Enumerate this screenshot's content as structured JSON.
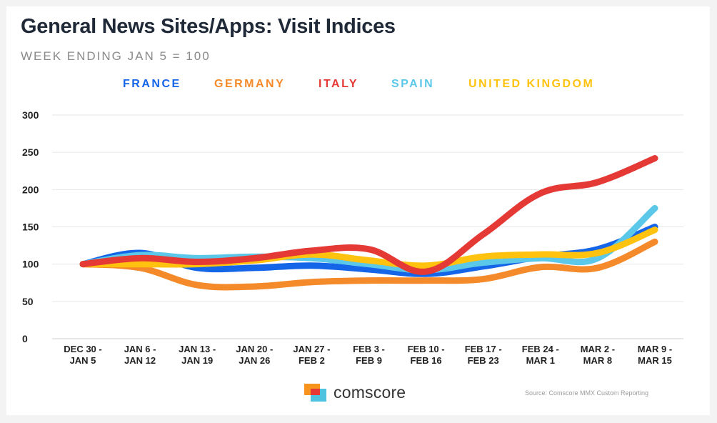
{
  "chart_data": {
    "type": "line",
    "title": "General News Sites/Apps: Visit Indices",
    "subtitle": "WEEK ENDING JAN 5 = 100",
    "categories": [
      [
        "DEC 30 -",
        "JAN 5"
      ],
      [
        "JAN 6 -",
        "JAN 12"
      ],
      [
        "JAN 13 -",
        "JAN 19"
      ],
      [
        "JAN 20 -",
        "JAN 26"
      ],
      [
        "JAN 27 -",
        "FEB 2"
      ],
      [
        "FEB 3 -",
        "FEB 9"
      ],
      [
        "FEB 10 -",
        "FEB 16"
      ],
      [
        "FEB 17 -",
        "FEB 23"
      ],
      [
        "FEB 24 -",
        "MAR 1"
      ],
      [
        "MAR 2 -",
        "MAR 8"
      ],
      [
        "MAR 9 -",
        "MAR 15"
      ]
    ],
    "yticks": [
      "0",
      "50",
      "100",
      "150",
      "200",
      "250",
      "300"
    ],
    "ylim": [
      0,
      300
    ],
    "grid": true,
    "legend_position": "top",
    "series": [
      {
        "name": "FRANCE",
        "color": "#1565e8",
        "values": [
          100,
          115,
          95,
          95,
          98,
          93,
          87,
          97,
          110,
          120,
          150
        ]
      },
      {
        "name": "GERMANY",
        "color": "#f58a2a",
        "values": [
          100,
          95,
          72,
          70,
          76,
          78,
          78,
          80,
          96,
          95,
          130
        ]
      },
      {
        "name": "SPAIN",
        "color": "#5bc8ea",
        "values": [
          100,
          112,
          108,
          110,
          108,
          100,
          92,
          102,
          108,
          108,
          175
        ]
      },
      {
        "name": "UNITED KINGDOM",
        "color": "#ffc20e",
        "values": [
          100,
          100,
          100,
          105,
          113,
          105,
          98,
          110,
          113,
          115,
          146
        ]
      },
      {
        "name": "ITALY",
        "color": "#e53935",
        "values": [
          100,
          108,
          103,
          108,
          118,
          120,
          90,
          140,
          195,
          210,
          242
        ]
      }
    ],
    "legend_order": [
      "FRANCE",
      "GERMANY",
      "ITALY",
      "SPAIN",
      "UNITED KINGDOM"
    ]
  },
  "brand": {
    "logo_text": "comscore"
  },
  "source": "Source: Comscore MMX Custom Reporting"
}
